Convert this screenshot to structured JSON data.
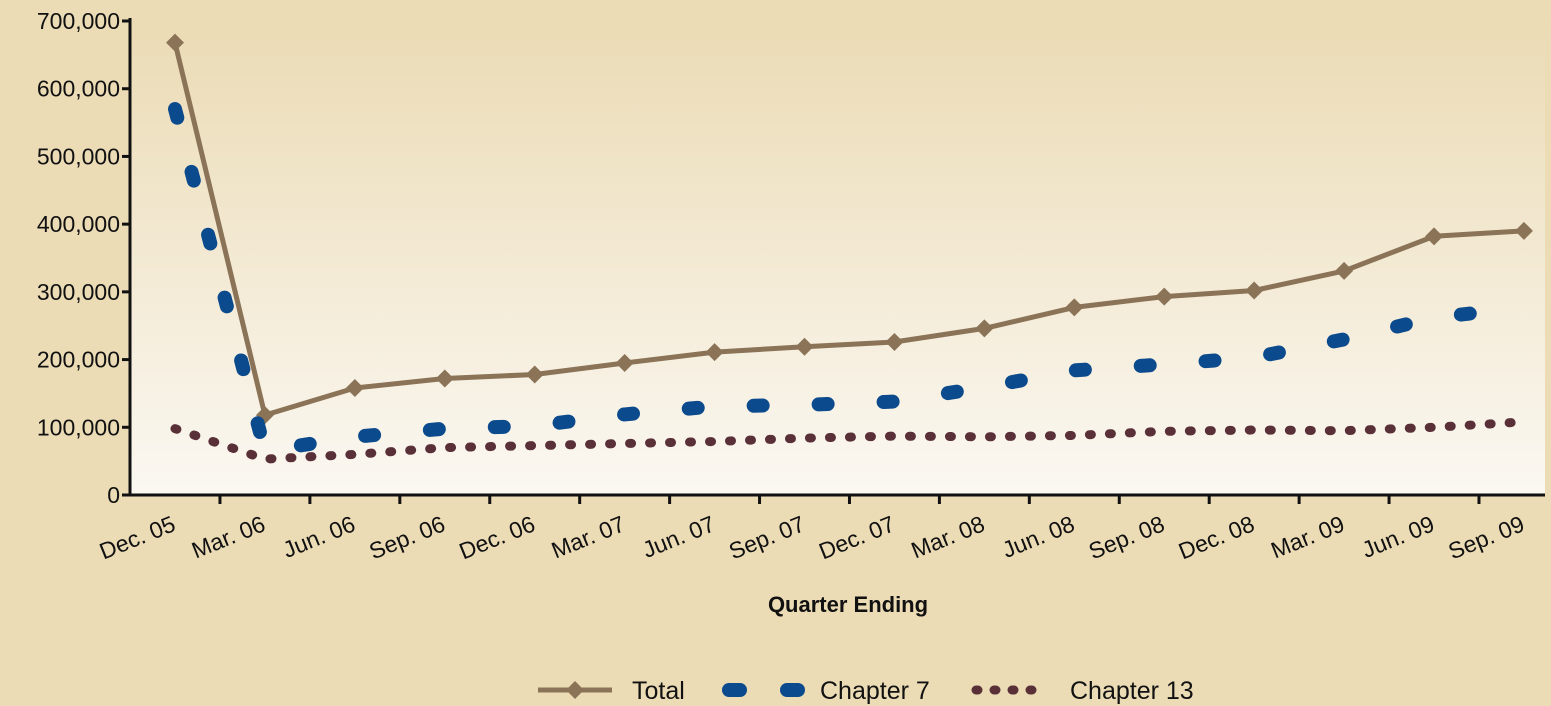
{
  "chart_data": {
    "type": "line",
    "title": "",
    "xlabel": "Quarter Ending",
    "ylabel": "",
    "ylim": [
      0,
      700000
    ],
    "yticks": [
      0,
      100000,
      200000,
      300000,
      400000,
      500000,
      600000,
      700000
    ],
    "ytick_labels": [
      "0",
      "100,000",
      "200,000",
      "300,000",
      "400,000",
      "500,000",
      "600,000",
      "700,000"
    ],
    "x_tick_labels": [
      "Dec. 05",
      "Mar. 06",
      "Jun. 06",
      "Sep. 06",
      "Dec. 06",
      "Mar. 07",
      "Jun. 07",
      "Sep. 07",
      "Dec. 07",
      "Mar. 08",
      "Jun. 08",
      "Sep. 08",
      "Dec. 08",
      "Mar. 09",
      "Jun. 09",
      "Sep. 09"
    ],
    "grid": false,
    "legend_position": "bottom-center",
    "series": [
      {
        "name": "Total",
        "color": "#8b7357",
        "style": "solid-diamond",
        "x": [
          "Dec. 05",
          "Mar. 06",
          "Jun. 06",
          "Sep. 06",
          "Dec. 06",
          "Mar. 07",
          "Jun. 07",
          "Sep. 07",
          "Dec. 07",
          "Mar. 08",
          "Jun. 08",
          "Sep. 08",
          "Dec. 08",
          "Mar. 09",
          "Jun. 09",
          "Sep. 09"
        ],
        "values": [
          668000,
          118000,
          158000,
          172000,
          178000,
          195000,
          211000,
          219000,
          226000,
          246000,
          277000,
          293000,
          302000,
          331000,
          382000,
          390000
        ]
      },
      {
        "name": "Chapter 7",
        "color": "#0b4a8c",
        "style": "dashed-thick",
        "x": [
          "Dec. 05",
          "Mar. 06",
          "Jun. 06",
          "Sep. 06",
          "Dec. 06",
          "Mar. 07",
          "Jun. 07",
          "Sep. 07",
          "Dec. 07",
          "Mar. 08",
          "Jun. 08",
          "Sep. 08",
          "Dec. 08",
          "Mar. 09",
          "Jun. 09",
          "Sep. 09"
        ],
        "values": [
          570000,
          65000,
          86000,
          98000,
          102000,
          119000,
          131000,
          133000,
          138000,
          159000,
          184000,
          193000,
          203000,
          230000,
          262000,
          277000
        ]
      },
      {
        "name": "Chapter 13",
        "color": "#5a3038",
        "style": "dotted",
        "x": [
          "Dec. 05",
          "Mar. 06",
          "Jun. 06",
          "Sep. 06",
          "Dec. 06",
          "Mar. 07",
          "Jun. 07",
          "Sep. 07",
          "Dec. 07",
          "Mar. 08",
          "Jun. 08",
          "Sep. 08",
          "Dec. 08",
          "Mar. 09",
          "Jun. 09",
          "Sep. 09"
        ],
        "values": [
          98000,
          53000,
          60000,
          70000,
          73000,
          76000,
          79000,
          84000,
          87000,
          86000,
          88000,
          94000,
          96000,
          95000,
          100000,
          108000
        ]
      }
    ]
  }
}
